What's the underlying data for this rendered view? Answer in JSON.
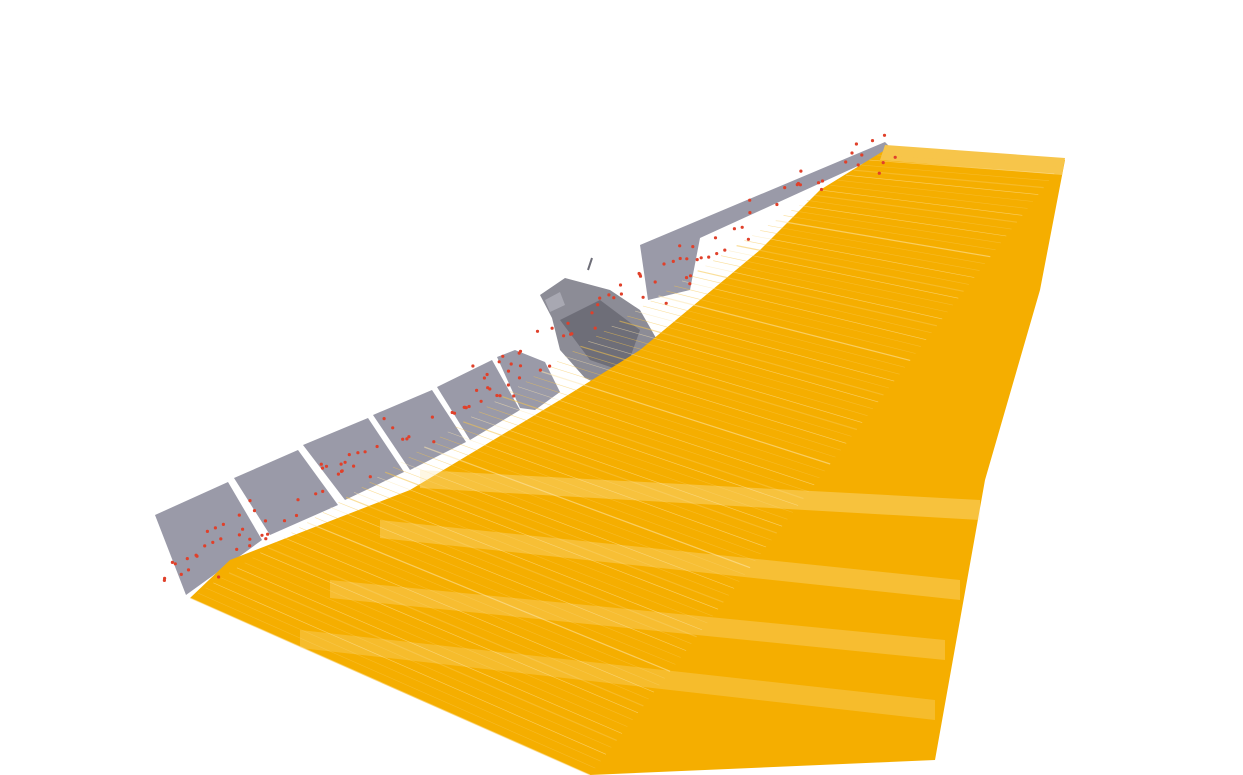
{
  "scene": {
    "subject": "satellite-with-solar-array-and-ray-beam",
    "colors": {
      "background": "#ffffff",
      "beam": "#f5ae00",
      "beam_light": "#f7c54a",
      "beam_gap": "#fde7b0",
      "solar_panel": "#9a9aa8",
      "panel_gap": "#ffffff",
      "satellite_body": "#8c8c96",
      "satellite_dark": "#6e6e78",
      "hit_points": "#e0402a"
    },
    "icons": [
      "satellite-icon",
      "solar-array-icon"
    ]
  }
}
